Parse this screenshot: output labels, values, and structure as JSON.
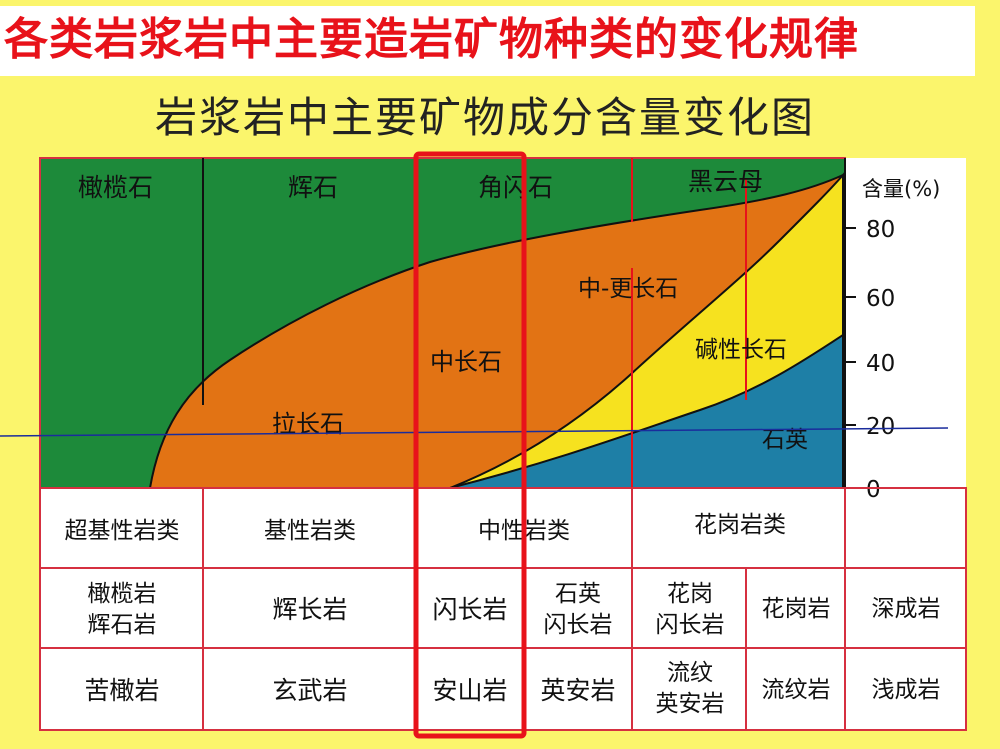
{
  "header": {
    "slide_title": "各类岩浆岩中主要造岩矿物种类的变化规律",
    "diagram_title": "岩浆岩中主要矿物成分含量变化图"
  },
  "axis": {
    "label": "含量(%)",
    "ticks": [
      "80",
      "60",
      "40",
      "20",
      "0"
    ]
  },
  "minerals": {
    "olivine": "橄榄石",
    "pyroxene": "辉石",
    "amphibole": "角闪石",
    "biotite": "黑云母",
    "labradorite": "拉长石",
    "andesine": "中长石",
    "oligoclase_andesine": "中-更长石",
    "alkali_feldspar": "碱性长石",
    "quartz": "石英"
  },
  "rock_classes": [
    "超基性岩类",
    "基性岩类",
    "中性岩类",
    "花岗岩类"
  ],
  "deep_rocks": {
    "c1": [
      "橄榄岩",
      "辉石岩"
    ],
    "c2": "辉长岩",
    "c3": "闪长岩",
    "c4": [
      "石英",
      "闪长岩"
    ],
    "c5": [
      "花岗",
      "闪长岩"
    ],
    "c6": "花岗岩",
    "label": "深成岩"
  },
  "shallow_rocks": {
    "c1": "苦橄岩",
    "c2": "玄武岩",
    "c3": "安山岩",
    "c4": "英安岩",
    "c5": [
      "流纹",
      "英安岩"
    ],
    "c6": "流纹岩",
    "label": "浅成岩"
  },
  "colors": {
    "background": "#fbf56c",
    "title_red": "#e8121a",
    "dark_mafic": "#1d8a3a",
    "plagioclase": "#e27314",
    "alkali_feldspar": "#f6e21f",
    "quartz": "#1e7fa6",
    "table_border": "#d63040",
    "highlight_box": "#e8121a",
    "guide_line": "#1a2c9c"
  }
}
